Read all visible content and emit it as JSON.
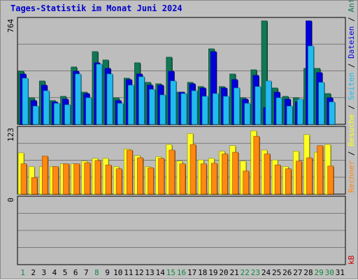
{
  "title": "Tages-Statistik im Monat Juni 2024",
  "colors": {
    "anfragen": "#117755",
    "dateien": "#0000dd",
    "seiten": "#22bbee",
    "besuche": "#ffff22",
    "rechner": "#ff8811",
    "kb": "#cc0000",
    "title": "#0000cc",
    "day_normal": "#000000",
    "day_weekend": "#118844"
  },
  "panels": {
    "top": {
      "max_label": "764",
      "ylim": [
        0,
        764
      ]
    },
    "mid": {
      "max_label": "123",
      "ylim": [
        0,
        123
      ]
    },
    "bottom": {
      "max_label": "0"
    }
  },
  "legend": {
    "right_top": {
      "anfragen": "Anfragen",
      "dateien": "Dateien",
      "seiten": "Seiten"
    },
    "right_mid": {
      "besuche": "Besuche",
      "rechner": "Rechner"
    },
    "right_bottom": {
      "kb": "kB"
    },
    "sep": "/"
  },
  "chart_data": {
    "type": "bar",
    "title": "Tages-Statistik im Monat Juni 2024",
    "categories": [
      "1",
      "2",
      "3",
      "4",
      "5",
      "6",
      "7",
      "8",
      "9",
      "10",
      "11",
      "12",
      "13",
      "14",
      "15",
      "16",
      "17",
      "18",
      "19",
      "20",
      "21",
      "22",
      "23",
      "24",
      "25",
      "26",
      "27",
      "28",
      "29",
      "30",
      "31"
    ],
    "weekend_days": [
      "1",
      "8",
      "15",
      "16",
      "22",
      "23",
      "29",
      "30"
    ],
    "top_series": [
      {
        "name": "Anfragen",
        "values": [
          380,
          190,
          310,
          170,
          200,
          410,
          230,
          520,
          460,
          190,
          330,
          440,
          300,
          290,
          480,
          230,
          300,
          270,
          540,
          270,
          360,
          190,
          390,
          740,
          260,
          200,
          190,
          400,
          400,
          220,
          0
        ]
      },
      {
        "name": "Dateien",
        "values": [
          360,
          170,
          280,
          160,
          180,
          380,
          220,
          440,
          400,
          170,
          320,
          360,
          280,
          280,
          380,
          230,
          290,
          260,
          520,
          260,
          320,
          180,
          350,
          120,
          230,
          180,
          160,
          740,
          370,
          190,
          0
        ]
      },
      {
        "name": "Seiten",
        "values": [
          330,
          130,
          240,
          150,
          140,
          360,
          190,
          430,
          360,
          150,
          280,
          340,
          250,
          210,
          310,
          220,
          240,
          200,
          220,
          200,
          260,
          150,
          270,
          310,
          190,
          130,
          180,
          560,
          300,
          160,
          0
        ]
      }
    ],
    "mid_series": [
      {
        "name": "Besuche",
        "values": [
          75,
          50,
          50,
          50,
          55,
          55,
          60,
          65,
          65,
          50,
          82,
          70,
          50,
          68,
          90,
          60,
          110,
          62,
          65,
          78,
          88,
          60,
          115,
          80,
          62,
          50,
          78,
          108,
          76,
          90,
          0
        ]
      },
      {
        "name": "Rechner",
        "values": [
          55,
          30,
          69,
          50,
          55,
          55,
          57,
          61,
          53,
          46,
          80,
          66,
          48,
          65,
          80,
          55,
          90,
          55,
          56,
          73,
          76,
          42,
          105,
          73,
          53,
          46,
          60,
          66,
          88,
          51,
          0
        ]
      }
    ],
    "bottom_series": [
      {
        "name": "kB",
        "values": [
          0,
          0,
          0,
          0,
          0,
          0,
          0,
          0,
          0,
          0,
          0,
          0,
          0,
          0,
          0,
          0,
          0,
          0,
          0,
          0,
          0,
          0,
          0,
          0,
          0,
          0,
          0,
          0,
          0,
          0,
          0
        ]
      }
    ]
  }
}
